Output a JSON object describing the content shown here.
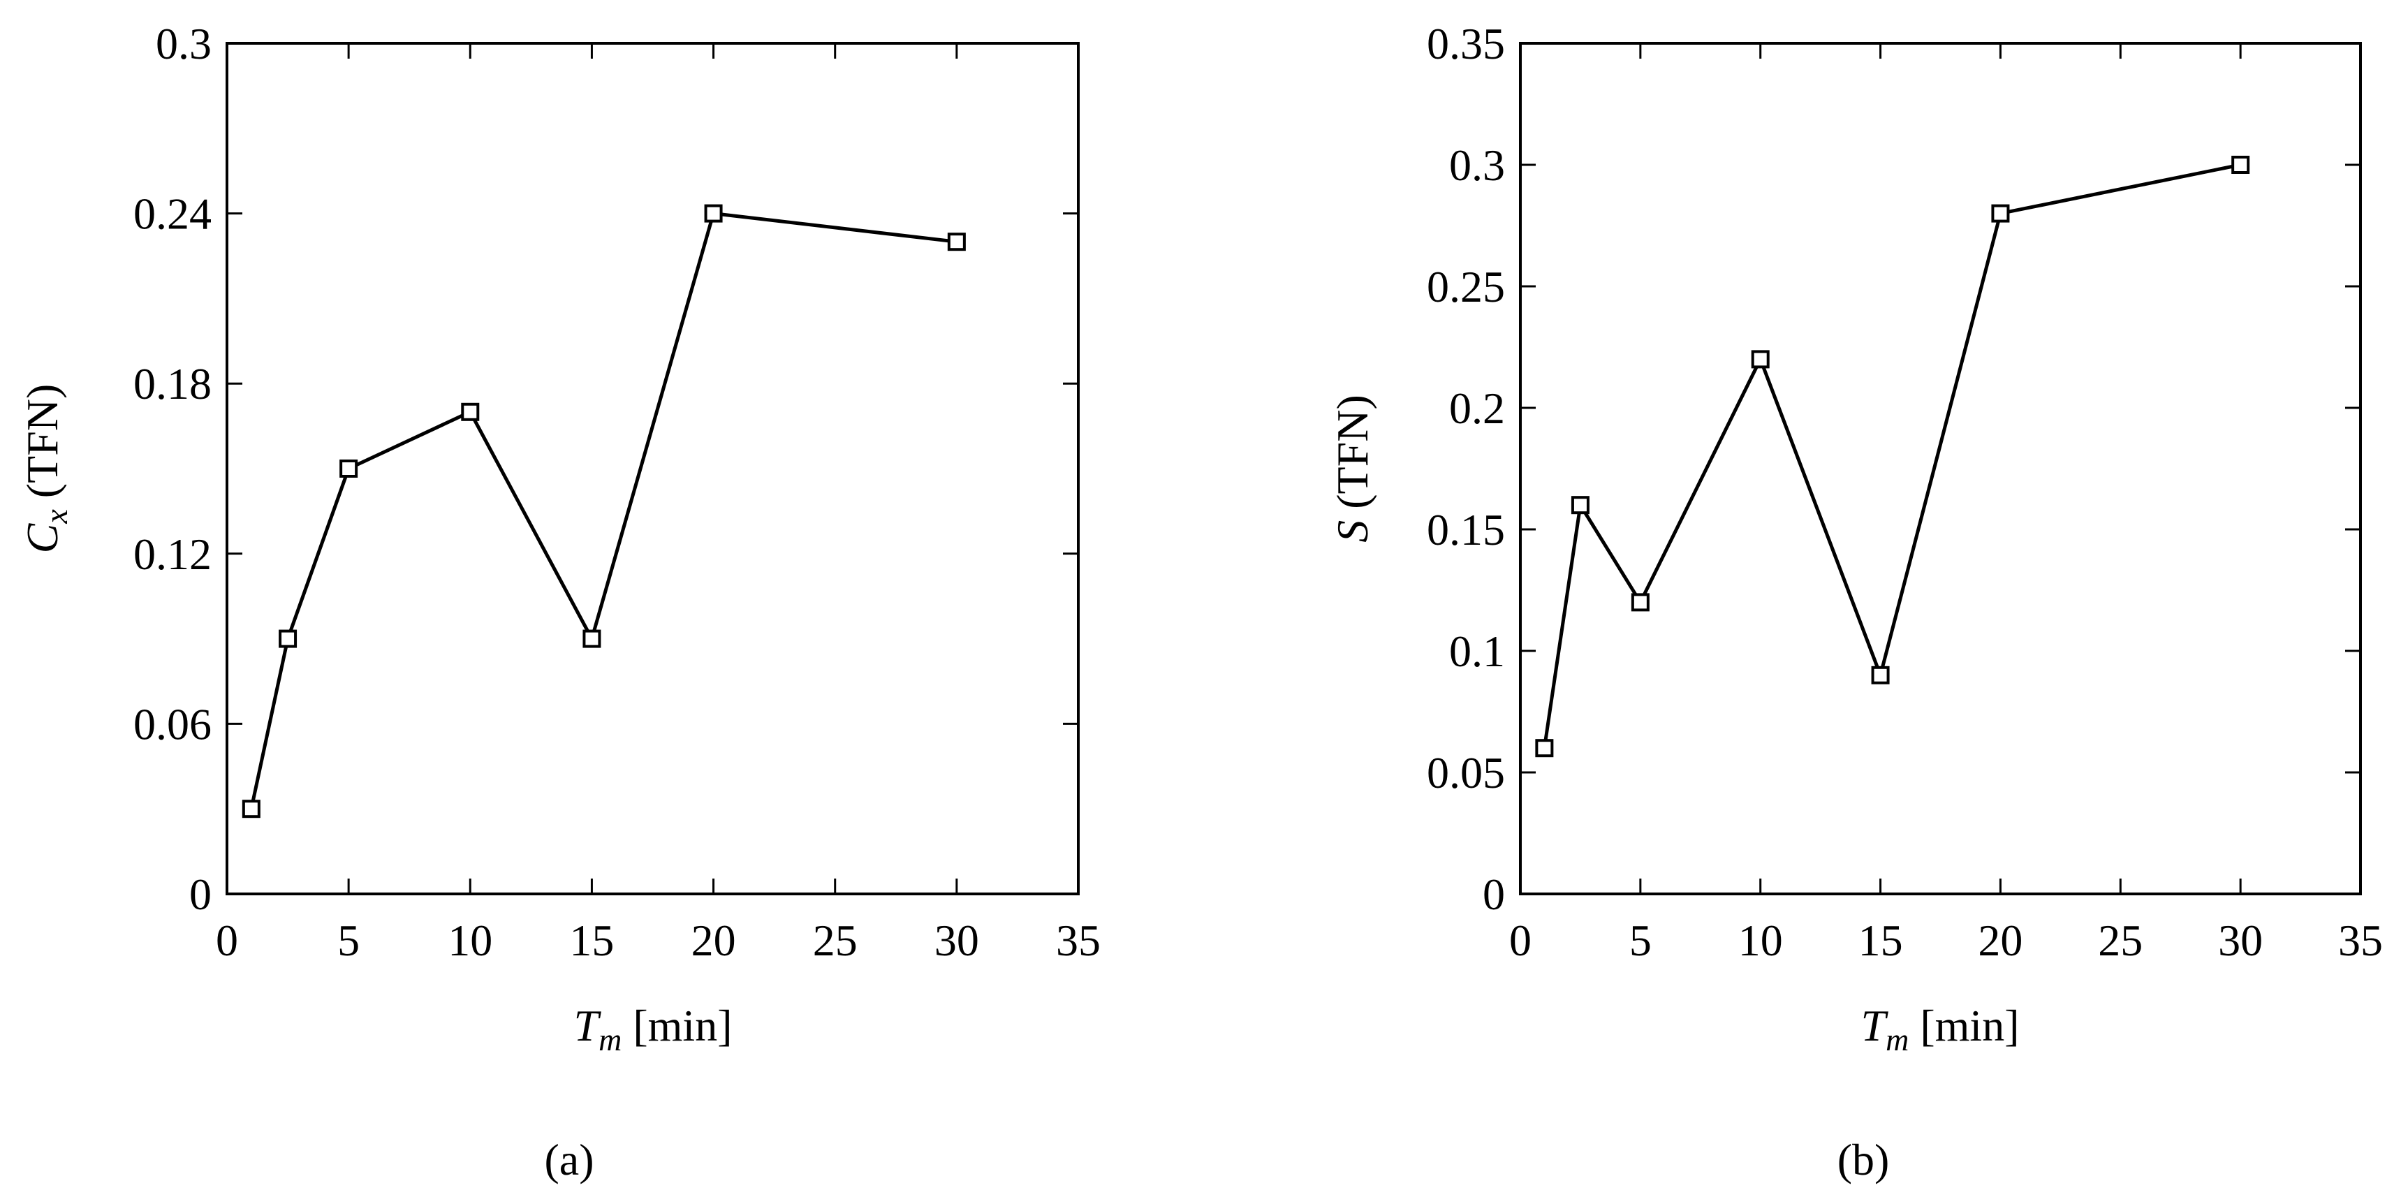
{
  "chart_data": [
    {
      "type": "line",
      "panel_label": "(a)",
      "x": [
        1,
        2.5,
        5,
        10,
        15,
        20,
        30
      ],
      "series": [
        {
          "values": [
            0.03,
            0.09,
            0.15,
            0.17,
            0.09,
            0.24,
            0.23
          ]
        }
      ],
      "xlim": [
        0,
        35
      ],
      "ylim": [
        0,
        0.3
      ],
      "xticks": [
        "0",
        "5",
        "10",
        "15",
        "20",
        "25",
        "30",
        "35"
      ],
      "yticks": [
        "0",
        "0.06",
        "0.12",
        "0.18",
        "0.24",
        "0.3"
      ],
      "xlabel": {
        "main": "T",
        "sub": "m",
        "unit": " [min]"
      },
      "ylabel": {
        "main": "C",
        "sub": "x",
        "unit": " (TFN)"
      },
      "marker": "square",
      "grid": false
    },
    {
      "type": "line",
      "panel_label": "(b)",
      "x": [
        1,
        2.5,
        5,
        10,
        15,
        20,
        30
      ],
      "series": [
        {
          "values": [
            0.06,
            0.16,
            0.12,
            0.22,
            0.09,
            0.28,
            0.3
          ]
        }
      ],
      "xlim": [
        0,
        35
      ],
      "ylim": [
        0,
        0.35
      ],
      "xticks": [
        "0",
        "5",
        "10",
        "15",
        "20",
        "25",
        "30",
        "35"
      ],
      "yticks": [
        "0",
        "0.05",
        "0.1",
        "0.15",
        "0.2",
        "0.25",
        "0.3",
        "0.35"
      ],
      "xlabel": {
        "main": "T",
        "sub": "m",
        "unit": " [min]"
      },
      "ylabel": {
        "main": "S",
        "sub": "",
        "unit": " (TFN)"
      },
      "marker": "square",
      "grid": false
    }
  ]
}
